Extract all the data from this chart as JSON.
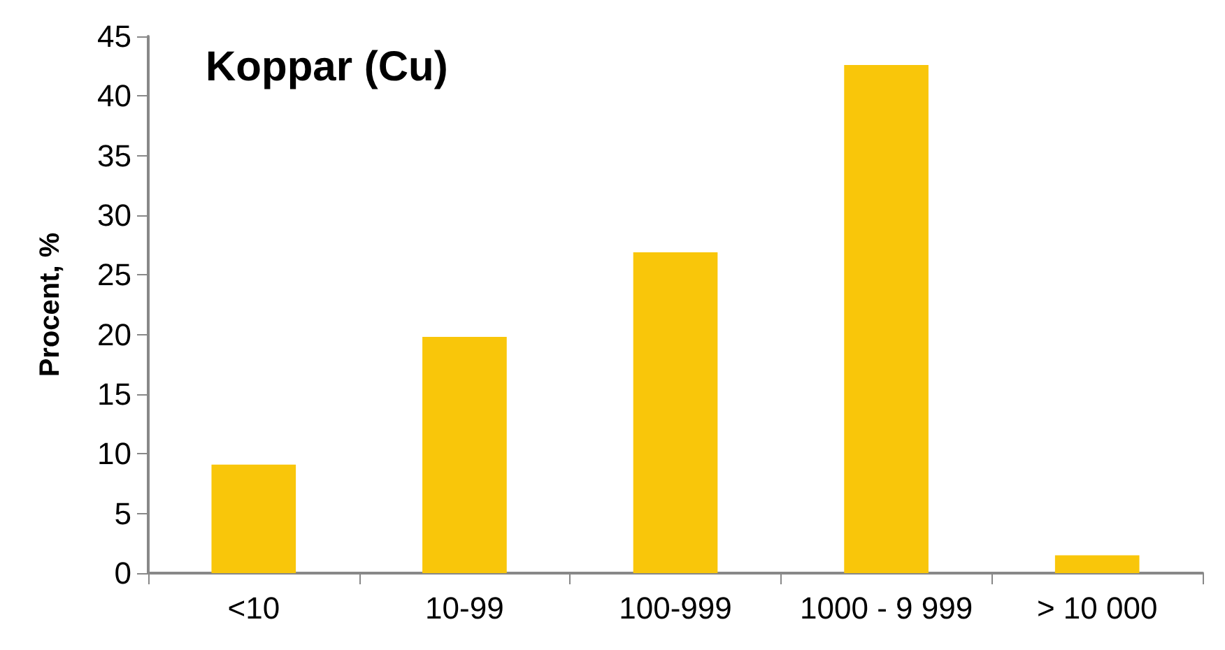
{
  "chart_data": {
    "type": "bar",
    "title": "Koppar (Cu)",
    "ylabel": "Procent, %",
    "categories": [
      "<10",
      "10-99",
      "100-999",
      "1000 - 9 999",
      "> 10 000"
    ],
    "values": [
      9.1,
      19.8,
      26.9,
      42.6,
      1.5
    ],
    "color": "#f9c60a",
    "ylim": [
      0,
      45
    ],
    "yticks": [
      0,
      5,
      10,
      15,
      20,
      25,
      30,
      35,
      40,
      45
    ],
    "grid": false
  }
}
